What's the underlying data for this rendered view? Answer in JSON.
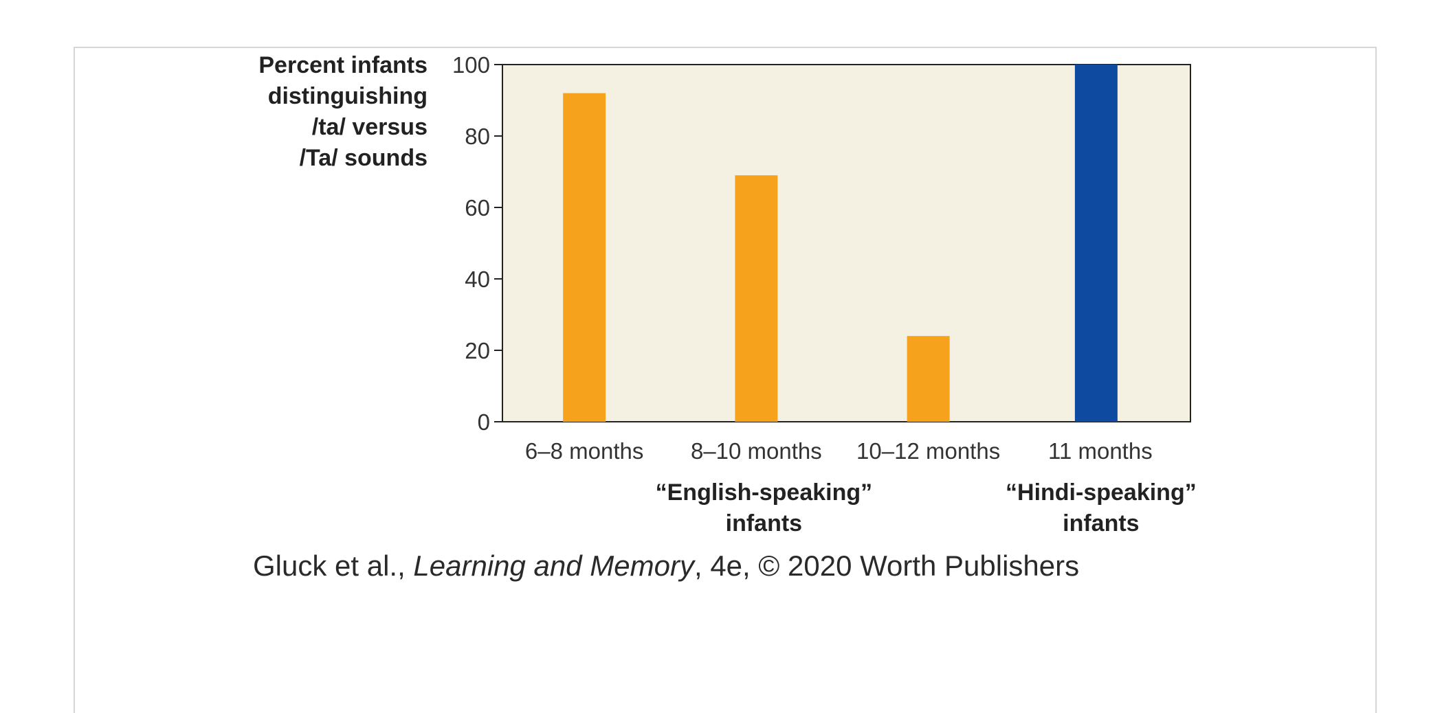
{
  "chart_data": {
    "type": "bar",
    "categories": [
      "6–8 months",
      "8–10 months",
      "10–12 months",
      "11 months"
    ],
    "values": [
      92,
      69,
      24,
      100
    ],
    "bar_colors": [
      "#f7a21c",
      "#f7a21c",
      "#f7a21c",
      "#0d4aa0"
    ],
    "ylabel_lines": [
      "Percent infants",
      "distinguishing",
      "/ta/ versus",
      "/Ta/ sounds"
    ],
    "ylim": [
      0,
      100
    ],
    "yticks": [
      0,
      20,
      40,
      60,
      80,
      100
    ],
    "group_labels": [
      {
        "lines": [
          "“English-speaking”",
          "infants"
        ],
        "under": [
          1,
          1
        ]
      },
      {
        "lines": [
          "“Hindi-speaking”",
          "infants"
        ],
        "under": [
          3,
          3
        ]
      }
    ],
    "plot_background": "#f4f0e2",
    "grid": false
  },
  "caption": {
    "authors": "Gluck et al., ",
    "book_title": "Learning and Memory",
    "rest": ", 4e, © 2020 Worth Publishers"
  }
}
